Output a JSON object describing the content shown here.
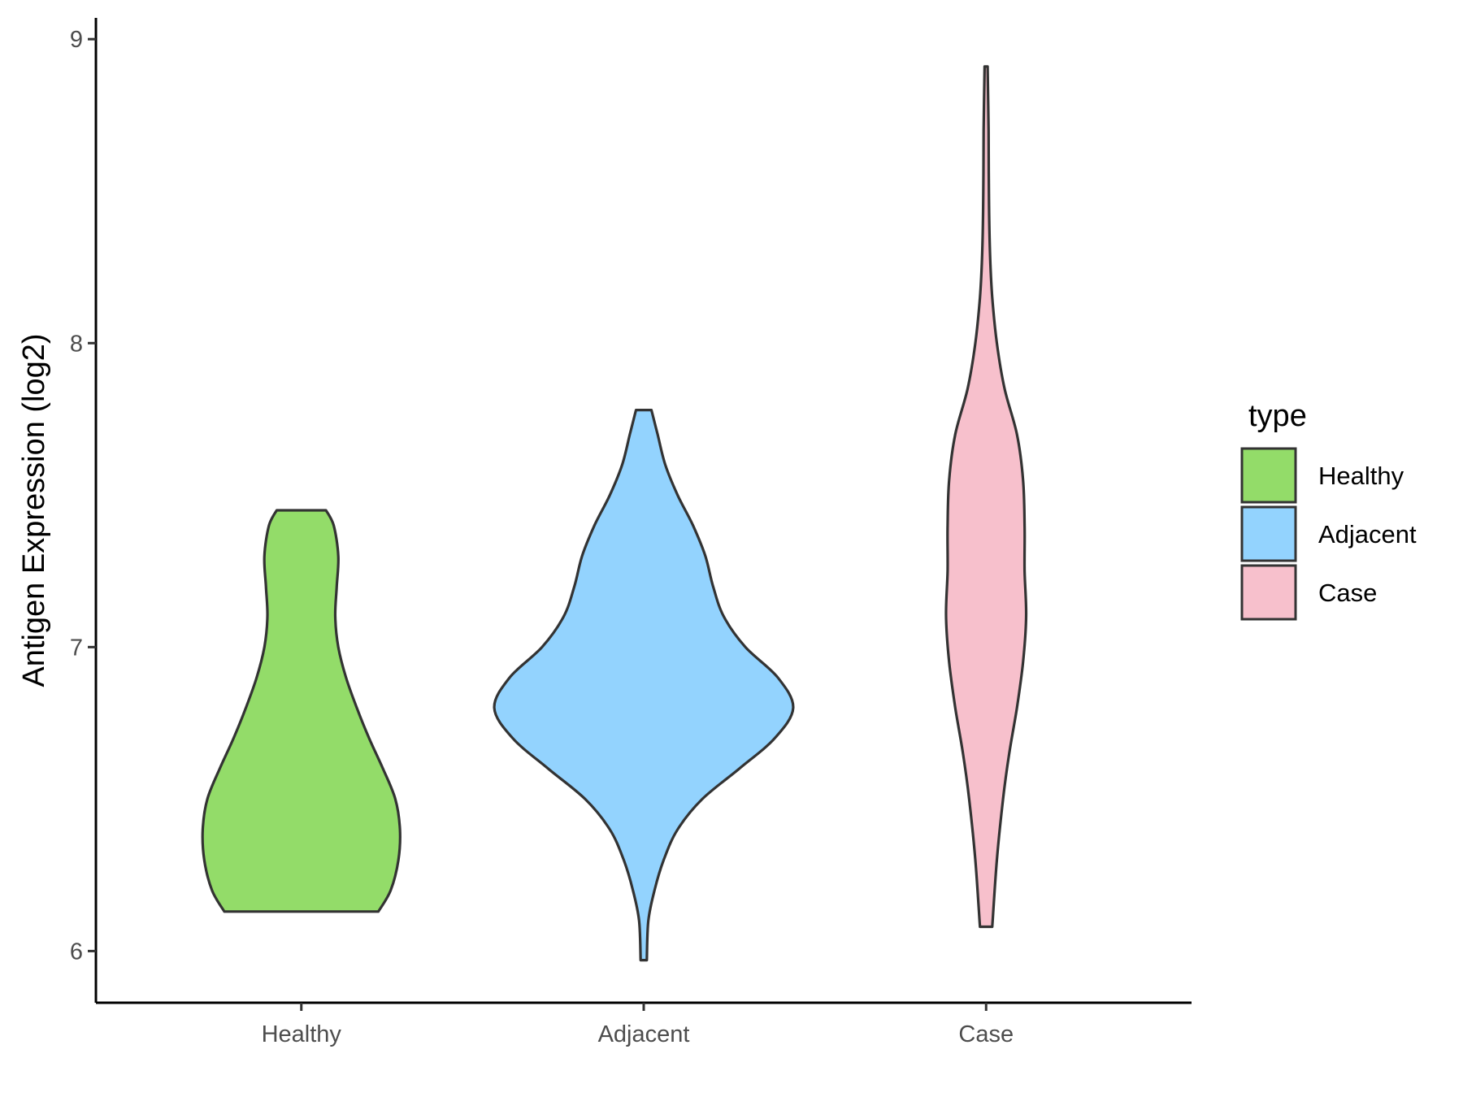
{
  "chart_data": {
    "type": "violin",
    "title": "",
    "xlabel": "",
    "ylabel": "Antigen Expression (log2)",
    "ylim": [
      5.83,
      9.07
    ],
    "yticks": [
      6,
      7,
      8,
      9
    ],
    "categories": [
      "Healthy",
      "Adjacent",
      "Case"
    ],
    "grid": false,
    "legend": {
      "title": "type",
      "placement": "right",
      "entries": [
        "Healthy",
        "Adjacent",
        "Case"
      ]
    },
    "colors": {
      "Healthy": "#93dc69",
      "Adjacent": "#93d3fe",
      "Case": "#f7c0cc",
      "outline": "#333333"
    },
    "series": [
      {
        "category": "Healthy",
        "min": 6.13,
        "max": 7.45,
        "density": [
          {
            "y": 6.13,
            "w": 0.5
          },
          {
            "y": 6.2,
            "w": 0.58
          },
          {
            "y": 6.3,
            "w": 0.63
          },
          {
            "y": 6.4,
            "w": 0.64
          },
          {
            "y": 6.5,
            "w": 0.61
          },
          {
            "y": 6.6,
            "w": 0.53
          },
          {
            "y": 6.7,
            "w": 0.44
          },
          {
            "y": 6.8,
            "w": 0.36
          },
          {
            "y": 6.9,
            "w": 0.29
          },
          {
            "y": 7.0,
            "w": 0.24
          },
          {
            "y": 7.1,
            "w": 0.22
          },
          {
            "y": 7.2,
            "w": 0.23
          },
          {
            "y": 7.3,
            "w": 0.24
          },
          {
            "y": 7.4,
            "w": 0.21
          },
          {
            "y": 7.45,
            "w": 0.16
          }
        ]
      },
      {
        "category": "Adjacent",
        "min": 5.97,
        "max": 7.78,
        "density": [
          {
            "y": 5.97,
            "w": 0.02
          },
          {
            "y": 6.1,
            "w": 0.03
          },
          {
            "y": 6.2,
            "w": 0.07
          },
          {
            "y": 6.3,
            "w": 0.13
          },
          {
            "y": 6.4,
            "w": 0.22
          },
          {
            "y": 6.5,
            "w": 0.38
          },
          {
            "y": 6.6,
            "w": 0.62
          },
          {
            "y": 6.7,
            "w": 0.85
          },
          {
            "y": 6.8,
            "w": 0.97
          },
          {
            "y": 6.9,
            "w": 0.87
          },
          {
            "y": 7.0,
            "w": 0.66
          },
          {
            "y": 7.1,
            "w": 0.52
          },
          {
            "y": 7.2,
            "w": 0.45
          },
          {
            "y": 7.3,
            "w": 0.4
          },
          {
            "y": 7.4,
            "w": 0.32
          },
          {
            "y": 7.5,
            "w": 0.22
          },
          {
            "y": 7.6,
            "w": 0.14
          },
          {
            "y": 7.7,
            "w": 0.09
          },
          {
            "y": 7.78,
            "w": 0.05
          }
        ]
      },
      {
        "category": "Case",
        "min": 6.08,
        "max": 8.91,
        "density": [
          {
            "y": 6.08,
            "w": 0.04
          },
          {
            "y": 6.3,
            "w": 0.07
          },
          {
            "y": 6.5,
            "w": 0.11
          },
          {
            "y": 6.65,
            "w": 0.15
          },
          {
            "y": 6.8,
            "w": 0.2
          },
          {
            "y": 6.95,
            "w": 0.24
          },
          {
            "y": 7.1,
            "w": 0.26
          },
          {
            "y": 7.25,
            "w": 0.25
          },
          {
            "y": 7.4,
            "w": 0.25
          },
          {
            "y": 7.55,
            "w": 0.24
          },
          {
            "y": 7.7,
            "w": 0.2
          },
          {
            "y": 7.85,
            "w": 0.12
          },
          {
            "y": 8.0,
            "w": 0.07
          },
          {
            "y": 8.15,
            "w": 0.04
          },
          {
            "y": 8.3,
            "w": 0.025
          },
          {
            "y": 8.5,
            "w": 0.018
          },
          {
            "y": 8.7,
            "w": 0.016
          },
          {
            "y": 8.91,
            "w": 0.01
          }
        ]
      }
    ]
  }
}
